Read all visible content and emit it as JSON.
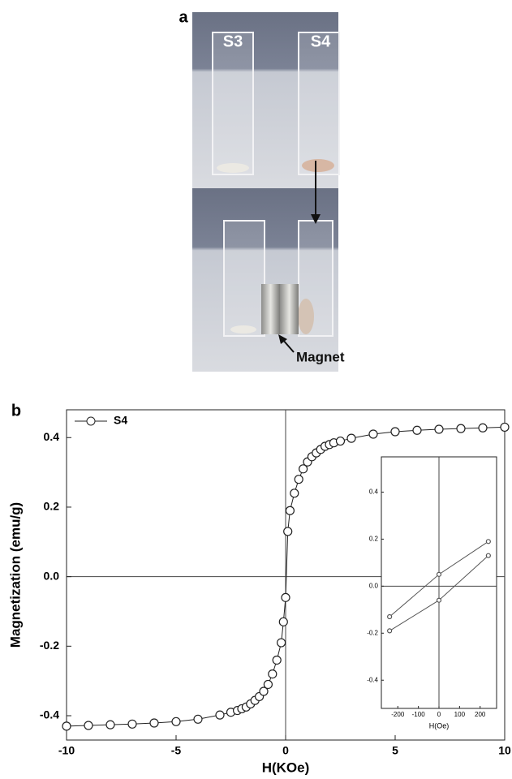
{
  "photo": {
    "panel_label": "a",
    "cuvette_labels": [
      "S3",
      "S4"
    ],
    "annotation": "Magnet"
  },
  "chart_data": [
    {
      "type": "line",
      "panel_label": "b",
      "xlabel": "H(KOe)",
      "ylabel": "Magnetization (emu/g)",
      "xlim": [
        -10,
        10
      ],
      "ylim": [
        -0.47,
        0.48
      ],
      "xticks": [
        -10,
        -5,
        0,
        5,
        10
      ],
      "yticks": [
        -0.4,
        -0.2,
        {
          "value": 0,
          "label": "0.0"
        },
        0.2,
        0.4
      ],
      "zero_lines": true,
      "legend": "upper left",
      "series": [
        {
          "name": "S4",
          "color": "#222222",
          "x": [
            -10,
            -9,
            -8,
            -7,
            -6,
            -5,
            -4,
            -3,
            -2.5,
            -2.2,
            -2,
            -1.8,
            -1.6,
            -1.4,
            -1.2,
            -1,
            -0.8,
            -0.6,
            -0.4,
            -0.2,
            -0.1,
            0,
            0.1,
            0.2,
            0.4,
            0.6,
            0.8,
            1,
            1.2,
            1.4,
            1.6,
            1.8,
            2,
            2.2,
            2.5,
            3,
            4,
            5,
            6,
            7,
            8,
            9,
            10
          ],
          "values": [
            -0.43,
            -0.428,
            -0.426,
            -0.424,
            -0.421,
            -0.417,
            -0.41,
            -0.398,
            -0.39,
            -0.385,
            -0.38,
            -0.375,
            -0.366,
            -0.356,
            -0.345,
            -0.33,
            -0.31,
            -0.28,
            -0.24,
            -0.19,
            -0.13,
            -0.06,
            0.13,
            0.19,
            0.24,
            0.28,
            0.31,
            0.33,
            0.345,
            0.356,
            0.366,
            0.375,
            0.38,
            0.385,
            0.39,
            0.398,
            0.41,
            0.417,
            0.421,
            0.424,
            0.426,
            0.428,
            0.43
          ]
        }
      ]
    },
    {
      "type": "line",
      "xlabel": "H(Oe)",
      "xlim": [
        -280,
        280
      ],
      "ylim": [
        -0.52,
        0.55
      ],
      "xticks": [
        -200,
        -100,
        0,
        100,
        200
      ],
      "yticks": [
        -0.4,
        -0.2,
        {
          "value": 0,
          "label": "0.0"
        },
        0.2,
        0.4
      ],
      "zero_lines": true,
      "series": [
        {
          "color": "#555555",
          "x": [
            -240,
            0,
            240
          ],
          "values": [
            -0.13,
            0.05,
            0.19
          ]
        },
        {
          "color": "#555555",
          "x": [
            -240,
            0,
            240
          ],
          "values": [
            -0.19,
            -0.06,
            0.13
          ]
        }
      ]
    }
  ]
}
